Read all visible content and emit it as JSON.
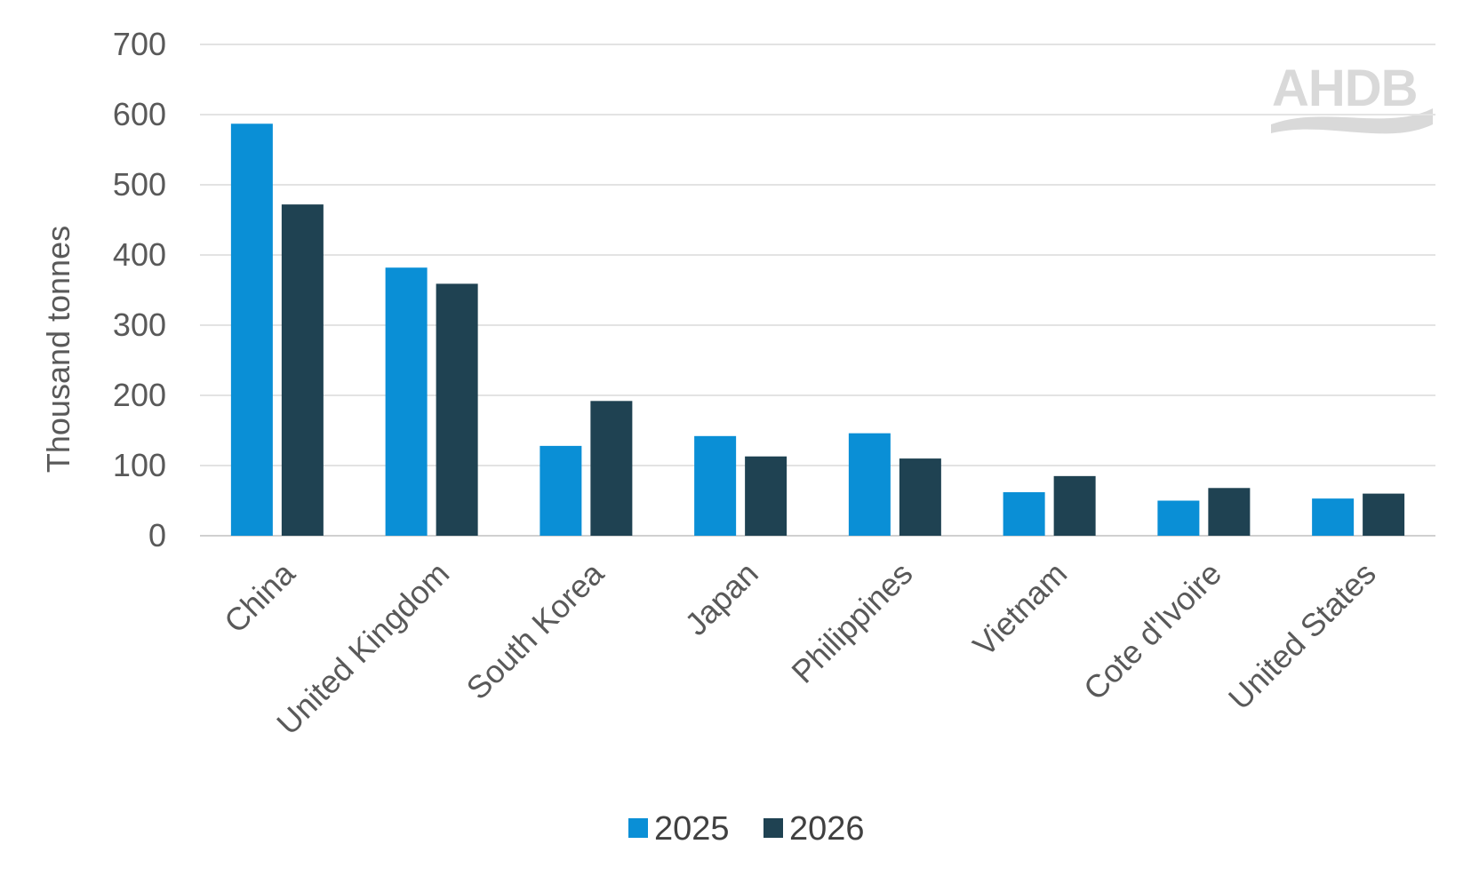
{
  "chart_data": {
    "type": "bar",
    "title": "",
    "xlabel": "",
    "ylabel": "Thousand tonnes",
    "ylim": [
      0,
      700
    ],
    "yticks": [
      0,
      100,
      200,
      300,
      400,
      500,
      600,
      700
    ],
    "grid": true,
    "legend_position": "bottom",
    "categories": [
      "China",
      "United Kingdom",
      "South Korea",
      "Japan",
      "Philippines",
      "Vietnam",
      "Cote d'Ivoire",
      "United States"
    ],
    "series": [
      {
        "name": "2025",
        "color": "#0a8fd6",
        "values": [
          587,
          382,
          128,
          142,
          146,
          62,
          50,
          53
        ]
      },
      {
        "name": "2026",
        "color": "#1f4252",
        "values": [
          472,
          359,
          192,
          113,
          110,
          85,
          68,
          60
        ]
      }
    ]
  },
  "logo": {
    "text": "AHDB",
    "color": "#d9d9d9"
  }
}
